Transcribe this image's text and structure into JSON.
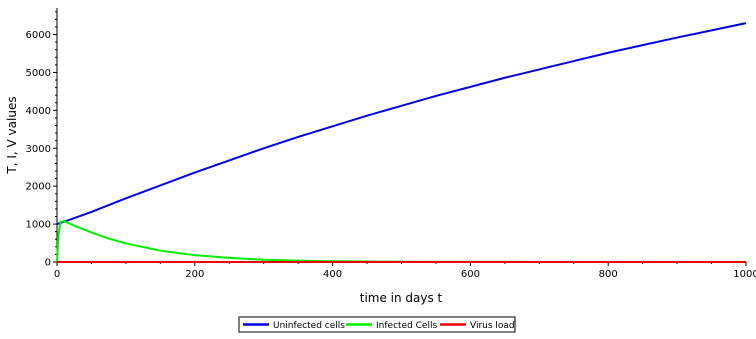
{
  "chart_data": {
    "type": "line",
    "title": "",
    "xlabel": "time in days t",
    "ylabel": "T, I, V values",
    "xlim": [
      0,
      1000
    ],
    "ylim": [
      0,
      6700
    ],
    "xticks": [
      0,
      200,
      400,
      600,
      800,
      1000
    ],
    "yticks": [
      0,
      1000,
      2000,
      3000,
      4000,
      5000,
      6000
    ],
    "legend_position": "bottom-center",
    "grid": false,
    "series": [
      {
        "name": "Uninfected cells",
        "color": "#0000dd",
        "x": [
          0,
          10,
          50,
          100,
          150,
          200,
          250,
          300,
          350,
          400,
          450,
          500,
          550,
          600,
          650,
          700,
          750,
          800,
          850,
          900,
          950,
          1000
        ],
        "y": [
          1000,
          1060,
          1320,
          1680,
          2020,
          2360,
          2680,
          3000,
          3300,
          3580,
          3860,
          4120,
          4380,
          4620,
          4860,
          5080,
          5300,
          5520,
          5720,
          5920,
          6110,
          6300
        ]
      },
      {
        "name": "Infected Cells",
        "color": "#00ee00",
        "x": [
          0,
          2,
          5,
          10,
          25,
          50,
          75,
          100,
          150,
          200,
          250,
          300,
          350,
          400,
          450,
          500,
          600,
          700,
          800,
          900,
          1000
        ],
        "y": [
          0,
          700,
          1050,
          1080,
          960,
          780,
          620,
          490,
          300,
          180,
          110,
          60,
          35,
          20,
          12,
          7,
          3,
          1,
          0,
          0,
          0
        ]
      },
      {
        "name": "Virus load",
        "color": "#ee0000",
        "x": [
          0,
          100,
          200,
          300,
          400,
          500,
          600,
          700,
          800,
          900,
          1000
        ],
        "y": [
          0,
          0,
          0,
          0,
          0,
          0,
          0,
          0,
          0,
          0,
          0
        ]
      }
    ]
  }
}
